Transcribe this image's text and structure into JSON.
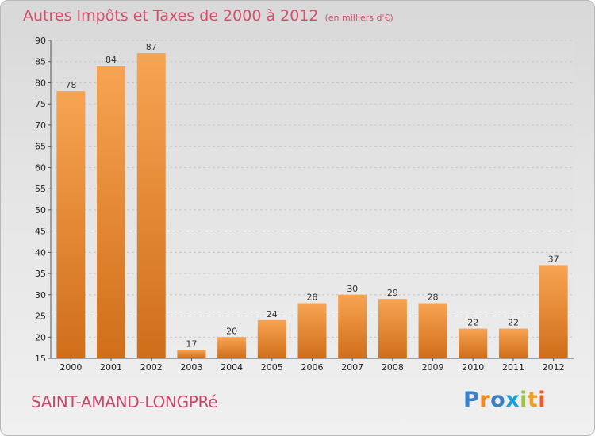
{
  "header": {
    "title": "Autres Impôts et Taxes de 2000 à 2012",
    "unit": "(en milliers d'€)"
  },
  "footer": {
    "commune": "SAINT-AMAND-LONGPRé",
    "brand_letters": [
      "P",
      "r",
      "o",
      "x",
      "i",
      "t",
      "i"
    ]
  },
  "colors": {
    "bar_light": "#f7a452",
    "bar_dark": "#d06e1a",
    "grid": "#c8c8c8",
    "title": "#d2506a"
  },
  "chart_data": {
    "type": "bar",
    "title": "Autres Impôts et Taxes de 2000 à 2012",
    "subtitle": "(en milliers d'€)",
    "categories": [
      "2000",
      "2001",
      "2002",
      "2003",
      "2004",
      "2005",
      "2006",
      "2007",
      "2008",
      "2009",
      "2010",
      "2011",
      "2012"
    ],
    "values": [
      78,
      84,
      87,
      17,
      20,
      24,
      28,
      30,
      29,
      28,
      22,
      22,
      37
    ],
    "ylim": [
      15,
      90
    ],
    "yticks": [
      15,
      20,
      25,
      30,
      35,
      40,
      45,
      50,
      55,
      60,
      65,
      70,
      75,
      80,
      85,
      90
    ],
    "grid": true,
    "xlabel": "",
    "ylabel": ""
  }
}
